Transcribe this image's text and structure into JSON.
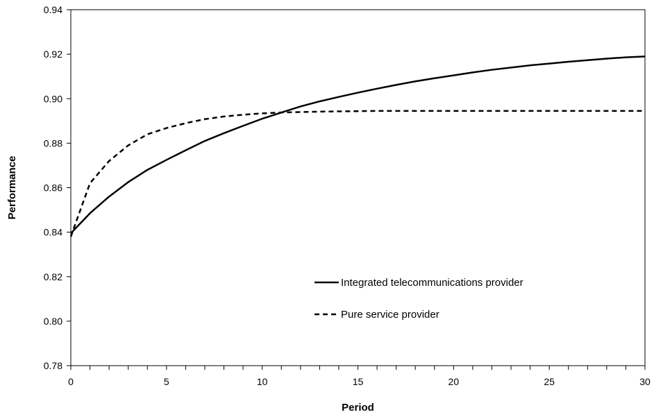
{
  "chart_data": {
    "type": "line",
    "xlabel": "Period",
    "ylabel": "Performance",
    "xlim": [
      0,
      30
    ],
    "ylim": [
      0.78,
      0.94
    ],
    "x_ticks": [
      0,
      5,
      10,
      15,
      20,
      25,
      30
    ],
    "x_tick_labels": [
      "0",
      "5",
      "10",
      "15",
      "20",
      "25",
      "30"
    ],
    "y_ticks": [
      0.78,
      0.8,
      0.82,
      0.84,
      0.86,
      0.88,
      0.9,
      0.92,
      0.94
    ],
    "y_tick_labels": [
      "0.78",
      "0.80",
      "0.82",
      "0.84",
      "0.86",
      "0.88",
      "0.90",
      "0.92",
      "0.94"
    ],
    "grid": false,
    "legend_position": "lower-right",
    "x": [
      0,
      1,
      2,
      3,
      4,
      5,
      6,
      7,
      8,
      9,
      10,
      11,
      12,
      13,
      14,
      15,
      16,
      17,
      18,
      19,
      20,
      21,
      22,
      23,
      24,
      25,
      26,
      27,
      28,
      29,
      30
    ],
    "series": [
      {
        "name": "Integrated telecommunications provider",
        "style": "solid",
        "color": "#000000",
        "values": [
          0.8395,
          0.8485,
          0.856,
          0.8625,
          0.868,
          0.8725,
          0.8768,
          0.881,
          0.8845,
          0.8878,
          0.891,
          0.8938,
          0.8965,
          0.8988,
          0.9008,
          0.9027,
          0.9045,
          0.9062,
          0.9078,
          0.9092,
          0.9105,
          0.9118,
          0.913,
          0.914,
          0.915,
          0.9158,
          0.9166,
          0.9173,
          0.918,
          0.9186,
          0.919
        ]
      },
      {
        "name": "Pure service provider",
        "style": "dashed",
        "color": "#000000",
        "values": [
          0.838,
          0.862,
          0.872,
          0.879,
          0.884,
          0.8868,
          0.889,
          0.8908,
          0.892,
          0.8928,
          0.8934,
          0.8938,
          0.894,
          0.8942,
          0.8943,
          0.8944,
          0.8945,
          0.8945,
          0.8945,
          0.8945,
          0.8945,
          0.8945,
          0.8945,
          0.8945,
          0.8945,
          0.8945,
          0.8945,
          0.8945,
          0.8945,
          0.8945,
          0.8945
        ]
      }
    ]
  }
}
